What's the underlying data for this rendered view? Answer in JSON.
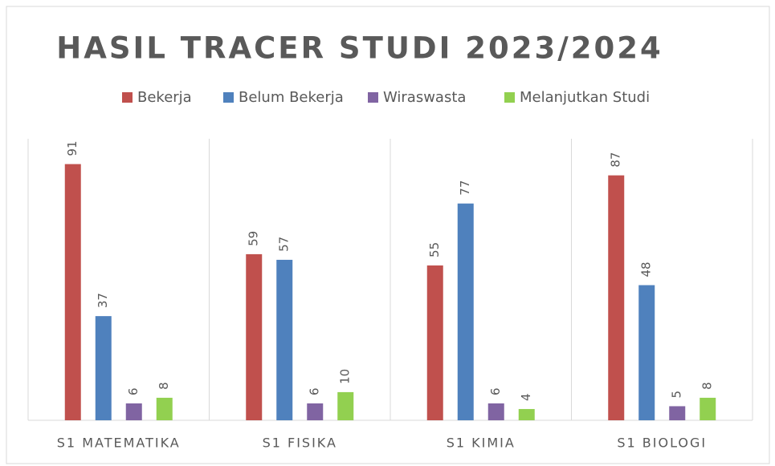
{
  "chart_data": {
    "type": "bar",
    "title": "HASIL TRACER STUDI 2023/2024",
    "categories": [
      "S1 MATEMATIKA",
      "S1 FISIKA",
      "S1 KIMIA",
      "S1 BIOLOGI"
    ],
    "series": [
      {
        "name": "Bekerja",
        "color": "#c0504d",
        "values": [
          91,
          59,
          55,
          87
        ]
      },
      {
        "name": "Belum Bekerja",
        "color": "#4f81bd",
        "values": [
          37,
          57,
          77,
          48
        ]
      },
      {
        "name": "Wiraswasta",
        "color": "#8064a2",
        "values": [
          6,
          6,
          6,
          5
        ]
      },
      {
        "name": "Melanjutkan Studi",
        "color": "#92d050",
        "values": [
          8,
          10,
          4,
          8
        ]
      }
    ],
    "ylim": [
      0,
      100
    ],
    "legend": "top"
  }
}
